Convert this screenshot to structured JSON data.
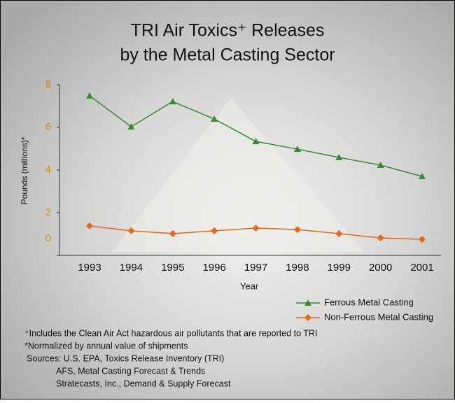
{
  "chart_data": {
    "type": "line",
    "title": [
      "TRI Air Toxics⁺ Releases",
      "by the Metal Casting Sector"
    ],
    "x_label": "Year",
    "y_label": "Pounds (millions)*",
    "categories": [
      "1993",
      "1994",
      "1995",
      "1996",
      "1997",
      "1998",
      "1999",
      "2000",
      "2001"
    ],
    "series": [
      {
        "name": "Ferrous Metal Casting",
        "color": "#3a8a3a",
        "marker": "triangle",
        "values": [
          7.48,
          6.03,
          7.21,
          6.39,
          5.34,
          4.98,
          4.59,
          4.23,
          3.7
        ]
      },
      {
        "name": "Non-Ferrous Metal Casting",
        "color": "#e8651c",
        "marker": "diamond",
        "values": [
          1.38,
          1.15,
          1.02,
          1.15,
          1.28,
          1.21,
          1.02,
          0.82,
          0.75
        ]
      }
    ],
    "ylim": [
      0,
      8
    ],
    "yticks": [
      0,
      2,
      4,
      6,
      8
    ],
    "tick_label_color": "#d08a10",
    "legend": "lower-right",
    "notes": [
      "⁺Includes the Clean Air Act hazardous air pollutants that are reported to TRI",
      "*Normalized by annual value of shipments",
      "Sources: U.S. EPA, Toxics Release Inventory (TRI)",
      "AFS, Metal Casting Forecast & Trends",
      "Stratecasts, Inc., Demand & Supply Forecast"
    ]
  }
}
